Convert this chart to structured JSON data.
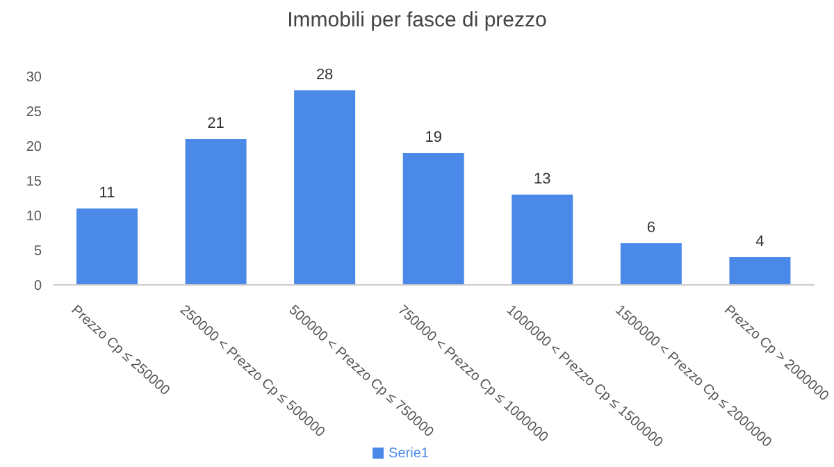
{
  "chart_data": {
    "type": "bar",
    "title": "Immobili per fasce di prezzo",
    "categories": [
      "Prezzo Cp ≤ 250000",
      "250000 < Prezzo Cp ≤ 500000",
      "500000 < Prezzo Cp ≤ 750000",
      "750000 < Prezzo Cp ≤ 1000000",
      "1000000 < Prezzo Cp ≤ 1500000",
      "1500000 < Prezzo Cp ≤ 2000000",
      "Prezzo Cp > 2000000"
    ],
    "series": [
      {
        "name": "Serie1",
        "color": "#4a89e8",
        "values": [
          11,
          21,
          28,
          19,
          13,
          6,
          4
        ]
      }
    ],
    "ylim": [
      0,
      30
    ],
    "yticks": [
      0,
      5,
      10,
      15,
      20,
      25,
      30
    ],
    "grid": false,
    "data_labels": true,
    "legend": "bottom"
  }
}
